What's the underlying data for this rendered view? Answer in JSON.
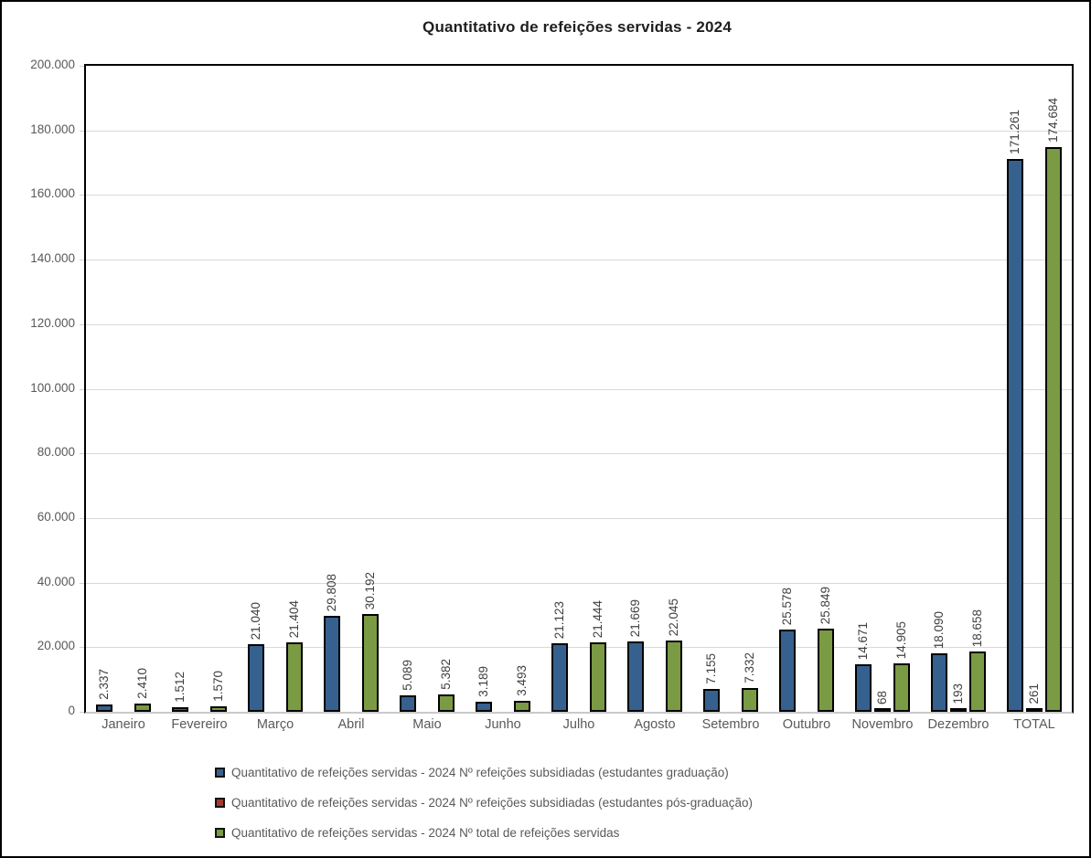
{
  "title": "Quantitativo de refeições servidas - 2024",
  "colors": {
    "grid": "#D9D9D9",
    "axis_text": "#595959",
    "data_label_text": "#404040",
    "plot_border": "#000000",
    "baseline": "#C9C9C9",
    "bar_border": "#000000",
    "series_blue": "#36618E",
    "series_red": "#A33B32",
    "series_green": "#7A9A44"
  },
  "chart_data": {
    "type": "bar",
    "title": "Quantitativo de refeições servidas - 2024",
    "categories": [
      "Janeiro",
      "Fevereiro",
      "Março",
      "Abril",
      "Maio",
      "Junho",
      "Julho",
      "Agosto",
      "Setembro",
      "Outubro",
      "Novembro",
      "Dezembro",
      "TOTAL"
    ],
    "series": [
      {
        "name": "Quantitativo de refeições servidas - 2024 Nº refeições subsidiadas (estudantes graduação)",
        "color": "#36618E",
        "values": [
          2337,
          1512,
          21040,
          29808,
          5089,
          3189,
          21123,
          21669,
          7155,
          25578,
          14671,
          18090,
          171261
        ]
      },
      {
        "name": "Quantitativo de refeições servidas - 2024 Nº refeições subsidiadas (estudantes pós-graduação)",
        "color": "#A33B32",
        "values": [
          0,
          0,
          0,
          0,
          0,
          0,
          0,
          0,
          0,
          0,
          68,
          193,
          261
        ]
      },
      {
        "name": "Quantitativo de refeições servidas - 2024 Nº total de refeições servidas",
        "color": "#7A9A44",
        "values": [
          2410,
          1570,
          21404,
          30192,
          5382,
          3493,
          21444,
          22045,
          7332,
          25849,
          14905,
          18658,
          174684
        ]
      }
    ],
    "xlabel": "",
    "ylabel": "",
    "ylim": [
      0,
      200000
    ],
    "y_tick_step": 20000,
    "y_tick_labels": [
      "0",
      "20.000",
      "40.000",
      "60.000",
      "80.000",
      "100.000",
      "120.000",
      "140.000",
      "160.000",
      "180.000",
      "200.000"
    ],
    "grid": true,
    "legend_position": "bottom-left",
    "data_labels": "rotated, thousands separated by dot, zero values hidden"
  }
}
